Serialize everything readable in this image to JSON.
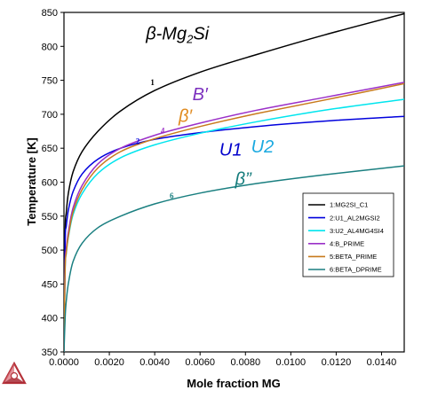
{
  "chart_data": {
    "type": "line",
    "xlabel": "Mole fraction MG",
    "ylabel": "Temperature [K]",
    "xlim": [
      0,
      0.015
    ],
    "ylim": [
      350,
      850
    ],
    "xticks": [
      "0.0000",
      "0.0020",
      "0.0040",
      "0.0060",
      "0.0080",
      "0.0100",
      "0.0120",
      "0.0140"
    ],
    "xtick_values": [
      0,
      0.002,
      0.004,
      0.006,
      0.008,
      0.01,
      0.012,
      0.014
    ],
    "yticks": [
      "350",
      "400",
      "450",
      "500",
      "550",
      "600",
      "650",
      "700",
      "750",
      "800",
      "850"
    ],
    "ytick_values": [
      350,
      400,
      450,
      500,
      550,
      600,
      650,
      700,
      750,
      800,
      850
    ],
    "grid": false,
    "legend_position": "right",
    "x": [
      5e-05,
      0.0001,
      0.0002,
      0.0004,
      0.0008,
      0.0015,
      0.0025,
      0.004,
      0.006,
      0.0085,
      0.0115,
      0.015
    ],
    "series": [
      {
        "name": "1:MG2SI_C1",
        "number": "1",
        "color": "#000000",
        "values": [
          525,
          555,
          585,
          615,
          645,
          675,
          705,
          735,
          762,
          788,
          817,
          848
        ]
      },
      {
        "name": "2:U1_AL2MGSI2",
        "number": "2",
        "color": "#0000dd",
        "values": [
          510,
          535,
          560,
          586,
          612,
          634,
          650,
          663,
          673,
          682,
          690,
          697
        ]
      },
      {
        "name": "3:U2_AL4MG4SI4",
        "number": "3",
        "color": "#00e5ee",
        "values": [
          472,
          495,
          520,
          552,
          583,
          613,
          636,
          655,
          672,
          689,
          706,
          722
        ]
      },
      {
        "name": "4:B_PRIME",
        "number": "4",
        "color": "#9b30c8",
        "values": [
          478,
          502,
          528,
          562,
          595,
          627,
          650,
          669,
          687,
          706,
          725,
          747
        ]
      },
      {
        "name": "5:BETA_PRIME",
        "number": "5",
        "color": "#c87a1c",
        "values": [
          472,
          496,
          522,
          556,
          589,
          621,
          645,
          664,
          682,
          701,
          721,
          745
        ]
      },
      {
        "name": "6:BETA_DPRIME",
        "number": "6",
        "color": "#1a7f80",
        "values": [
          400,
          425,
          452,
          483,
          510,
          533,
          550,
          568,
          584,
          598,
          611,
          624
        ]
      }
    ],
    "curve_number_labels": [
      {
        "text": "1",
        "x": 0.0039,
        "y": 743,
        "color": "#000000"
      },
      {
        "text": "2",
        "x": 0.00325,
        "y": 656,
        "color": "#0000dd"
      },
      {
        "text": "4",
        "x": 0.00435,
        "y": 672,
        "color": "#9b30c8"
      },
      {
        "text": "6",
        "x": 0.00475,
        "y": 576,
        "color": "#1a7f80"
      }
    ],
    "phase_labels": [
      {
        "text": "B′",
        "x": 0.006,
        "y": 721,
        "color": "#7b2fbe"
      },
      {
        "text": "β′",
        "x": 0.00535,
        "y": 689,
        "color": "#e08a1e"
      },
      {
        "text": "U1",
        "x": 0.00735,
        "y": 639,
        "color": "#0000cc"
      },
      {
        "text": "U2",
        "x": 0.00875,
        "y": 644,
        "color": "#1aa9e0"
      },
      {
        "text": "β”",
        "x": 0.0079,
        "y": 596,
        "color": "#137b7b"
      }
    ],
    "title_label": {
      "text": "β-Mg",
      "sub": "2",
      "tail": "Si",
      "x": 0.005,
      "y": 810,
      "color": "#000000"
    }
  }
}
